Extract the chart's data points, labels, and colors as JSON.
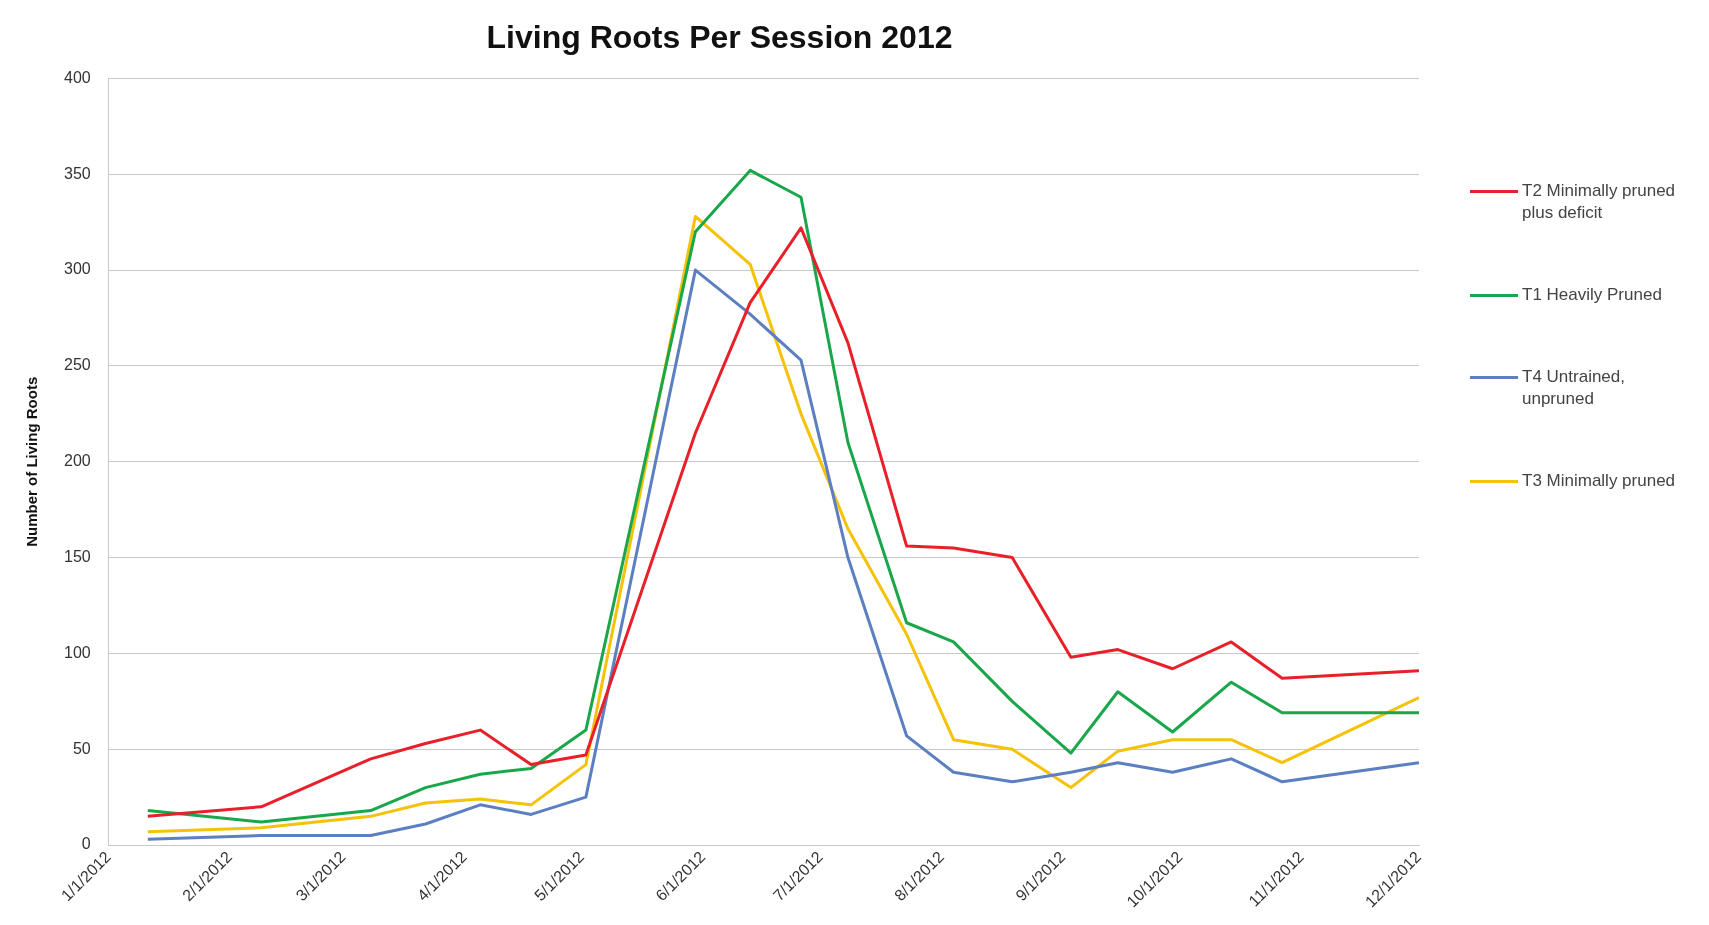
{
  "chart_data": {
    "type": "line",
    "title": "Living Roots Per Session 2012",
    "ylabel": "Number of Living Roots",
    "x": [
      "2012-01-11",
      "2012-02-09",
      "2012-03-08",
      "2012-03-22",
      "2012-04-05",
      "2012-04-18",
      "2012-05-02",
      "2012-05-30",
      "2012-06-13",
      "2012-06-26",
      "2012-07-08",
      "2012-07-23",
      "2012-08-04",
      "2012-08-19",
      "2012-09-03",
      "2012-09-15",
      "2012-09-29",
      "2012-10-14",
      "2012-10-27",
      "2012-12-01"
    ],
    "series": [
      {
        "name": "T2 Minimally pruned plus deficit",
        "color": "#e8202a",
        "values": [
          15,
          20,
          45,
          53,
          60,
          42,
          47,
          215,
          283,
          322,
          262,
          156,
          155,
          150,
          98,
          102,
          92,
          106,
          87,
          91
        ]
      },
      {
        "name": "T1 Heavily Pruned",
        "color": "#1aa64a",
        "values": [
          18,
          12,
          18,
          30,
          37,
          40,
          60,
          320,
          352,
          338,
          210,
          116,
          106,
          75,
          48,
          80,
          59,
          85,
          69,
          69
        ]
      },
      {
        "name": "T4 Untrained, unpruned",
        "color": "#5b7fc0",
        "values": [
          3,
          5,
          5,
          11,
          21,
          16,
          25,
          300,
          277,
          253,
          150,
          57,
          38,
          33,
          38,
          43,
          38,
          45,
          33,
          43
        ]
      },
      {
        "name": "T3 Minimally pruned",
        "color": "#f5c20a",
        "values": [
          7,
          9,
          15,
          22,
          24,
          21,
          42,
          328,
          303,
          225,
          165,
          110,
          55,
          50,
          30,
          49,
          55,
          55,
          43,
          77
        ]
      }
    ],
    "xlim": [
      "2012-01-01",
      "2012-12-01"
    ],
    "xticks": [
      {
        "value": "2012-01-01",
        "label": "1/1/2012"
      },
      {
        "value": "2012-02-01",
        "label": "2/1/2012"
      },
      {
        "value": "2012-03-01",
        "label": "3/1/2012"
      },
      {
        "value": "2012-04-01",
        "label": "4/1/2012"
      },
      {
        "value": "2012-05-01",
        "label": "5/1/2012"
      },
      {
        "value": "2012-06-01",
        "label": "6/1/2012"
      },
      {
        "value": "2012-07-01",
        "label": "7/1/2012"
      },
      {
        "value": "2012-08-01",
        "label": "8/1/2012"
      },
      {
        "value": "2012-09-01",
        "label": "9/1/2012"
      },
      {
        "value": "2012-10-01",
        "label": "10/1/2012"
      },
      {
        "value": "2012-11-01",
        "label": "11/1/2012"
      },
      {
        "value": "2012-12-01",
        "label": "12/1/2012"
      }
    ],
    "ylim": [
      0,
      400
    ],
    "yticks": [
      0,
      50,
      100,
      150,
      200,
      250,
      300,
      350,
      400
    ],
    "grid": "y",
    "legend": "right",
    "marker": "none",
    "line_style": "solid"
  }
}
